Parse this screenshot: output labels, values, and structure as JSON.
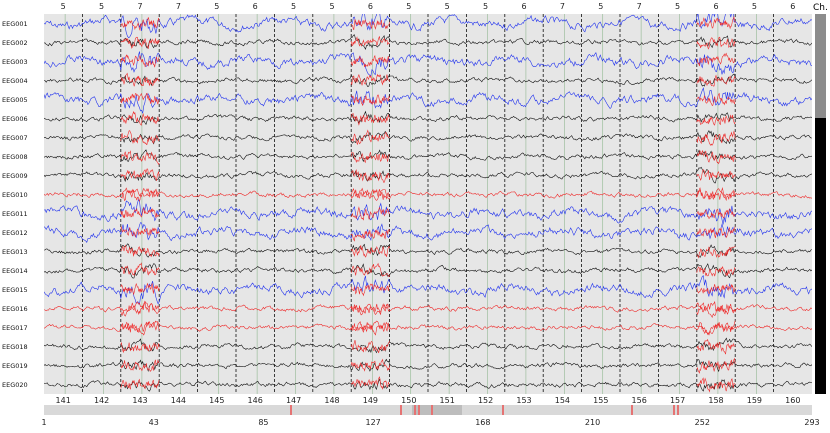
{
  "top_epoch_labels": [
    "5",
    "5",
    "7",
    "7",
    "5",
    "6",
    "5",
    "5",
    "6",
    "5",
    "5",
    "5",
    "6",
    "7",
    "5",
    "7",
    "5",
    "6",
    "5",
    "6"
  ],
  "channels": [
    "EEG001",
    "EEG002",
    "EEG003",
    "EEG004",
    "EEG005",
    "EEG006",
    "EEG007",
    "EEG008",
    "EEG009",
    "EEG010",
    "EEG011",
    "EEG012",
    "EEG013",
    "EEG014",
    "EEG015",
    "EEG016",
    "EEG017",
    "EEG018",
    "EEG019",
    "EEG020"
  ],
  "channel_colors": [
    "blue",
    "black",
    "blue",
    "black",
    "blue",
    "black",
    "black",
    "black",
    "black",
    "red",
    "blue",
    "blue",
    "black",
    "black",
    "blue",
    "red",
    "red",
    "black",
    "black",
    "black"
  ],
  "colors": {
    "black": "#111111",
    "blue": "#2233ee",
    "red": "#ee2a2a",
    "bg": "#e6e6e6",
    "bad": "#e57373"
  },
  "scroll_tag": "Ch.",
  "epoch_numbers": [
    "141",
    "142",
    "143",
    "144",
    "145",
    "146",
    "147",
    "148",
    "149",
    "150",
    "151",
    "152",
    "153",
    "154",
    "155",
    "156",
    "157",
    "158",
    "159",
    "160"
  ],
  "hscroll_ticks": [
    "1",
    "43",
    "85",
    "127",
    "168",
    "210",
    "252",
    "293"
  ]
}
